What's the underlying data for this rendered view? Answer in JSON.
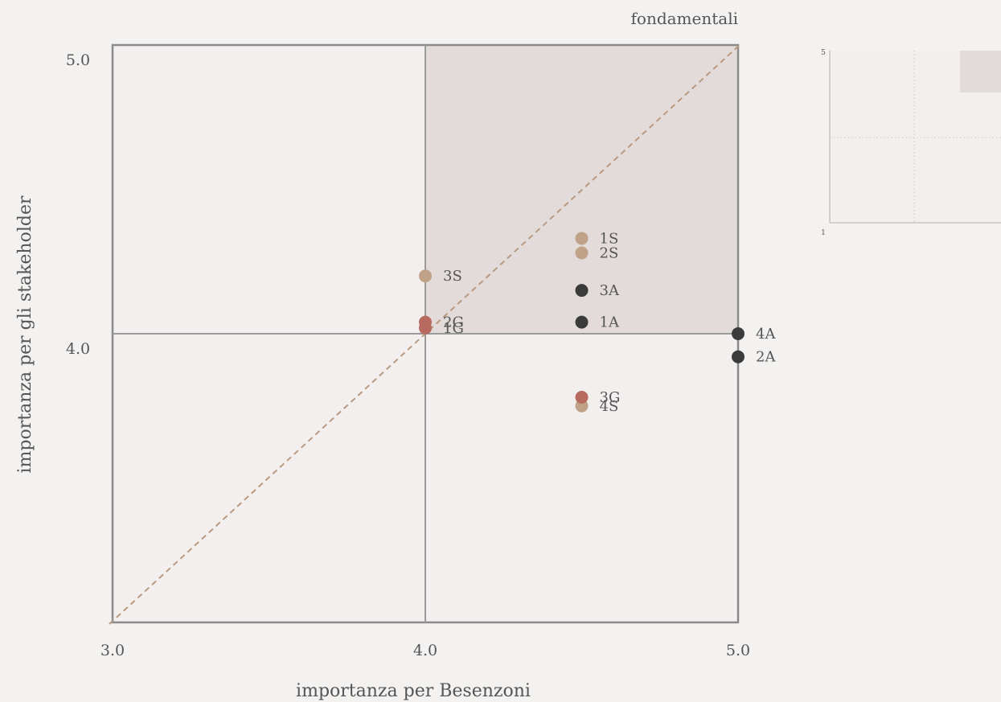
{
  "chart_data": [
    {
      "type": "scatter",
      "title": "",
      "quadrant_label": "fondamentali",
      "xlabel": "importanza per Besenzoni",
      "ylabel": "importanza per  gli stakeholder",
      "xlim": [
        3.0,
        5.0
      ],
      "ylim": [
        3.0,
        5.0
      ],
      "x_ticks": [
        "3.0",
        "4.0",
        "5.0"
      ],
      "y_ticks": [
        "4.0",
        "5.0"
      ],
      "threshold": {
        "x": 4.0,
        "y": 4.0
      },
      "diagonal": true,
      "colors": {
        "background": "#f4f2f0",
        "plot_area": "#f3efee",
        "highlight_quadrant": "#e3dbda",
        "diagonal": "#b99a80",
        "S": "#bfa287",
        "A": "#3b3b3b",
        "G": "#b76a60"
      },
      "series": [
        {
          "name": "",
          "group": "S",
          "points": [
            {
              "label": "1S",
              "x": 4.5,
              "y": 4.33
            },
            {
              "label": "2S",
              "x": 4.5,
              "y": 4.28
            },
            {
              "label": "3S",
              "x": 4.0,
              "y": 4.2
            },
            {
              "label": "4S",
              "x": 4.5,
              "y": 3.75
            }
          ]
        },
        {
          "name": "",
          "group": "A",
          "points": [
            {
              "label": "3A",
              "x": 4.5,
              "y": 4.15
            },
            {
              "label": "1A",
              "x": 4.5,
              "y": 4.04
            },
            {
              "label": "4A",
              "x": 5.0,
              "y": 4.0
            },
            {
              "label": "2A",
              "x": 5.0,
              "y": 3.92
            }
          ]
        },
        {
          "name": "",
          "group": "G",
          "points": [
            {
              "label": "2G",
              "x": 4.0,
              "y": 4.04
            },
            {
              "label": "1G",
              "x": 4.0,
              "y": 4.02
            },
            {
              "label": "3G",
              "x": 4.5,
              "y": 3.78
            }
          ]
        }
      ]
    },
    {
      "type": "scatter",
      "title": "",
      "xlim": [
        1,
        5
      ],
      "ylim": [
        1,
        5
      ],
      "y_ticks": [
        "5",
        "1"
      ],
      "threshold": {
        "x": 3,
        "y": 3
      },
      "colors": {
        "plot_area": "#f3efee",
        "highlight_quadrant": "#e3dbda",
        "grid": "#c8c8c8"
      },
      "series": []
    }
  ]
}
